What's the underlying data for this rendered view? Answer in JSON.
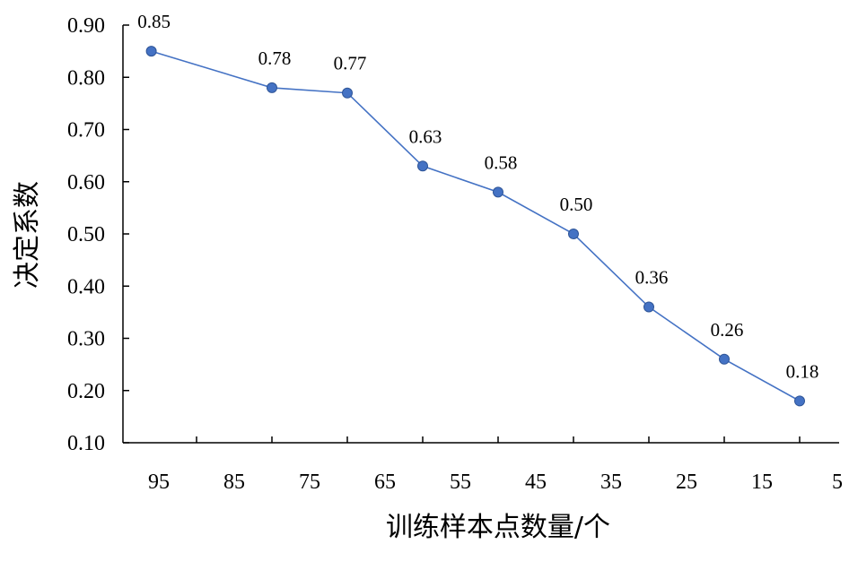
{
  "chart_data": {
    "type": "line",
    "xlabel": "训练样本点数量/个",
    "ylabel": "决定系数",
    "x_ticks": [
      "95",
      "85",
      "75",
      "65",
      "55",
      "45",
      "35",
      "25",
      "15",
      "5"
    ],
    "y_ticks": [
      "0.10",
      "0.20",
      "0.30",
      "0.40",
      "0.50",
      "0.60",
      "0.70",
      "0.80",
      "0.90"
    ],
    "xlim": [
      100,
      5
    ],
    "ylim": [
      0.1,
      0.9
    ],
    "x_reversed": true,
    "grid": false,
    "series": [
      {
        "x": [
          96,
          80,
          70,
          60,
          50,
          40,
          30,
          20,
          10
        ],
        "values": [
          0.85,
          0.78,
          0.77,
          0.63,
          0.58,
          0.5,
          0.36,
          0.26,
          0.18
        ],
        "labels": [
          "0.85",
          "0.78",
          "0.77",
          "0.63",
          "0.58",
          "0.50",
          "0.36",
          "0.26",
          "0.18"
        ],
        "color": "#4472C4",
        "marker": "circle"
      }
    ]
  }
}
